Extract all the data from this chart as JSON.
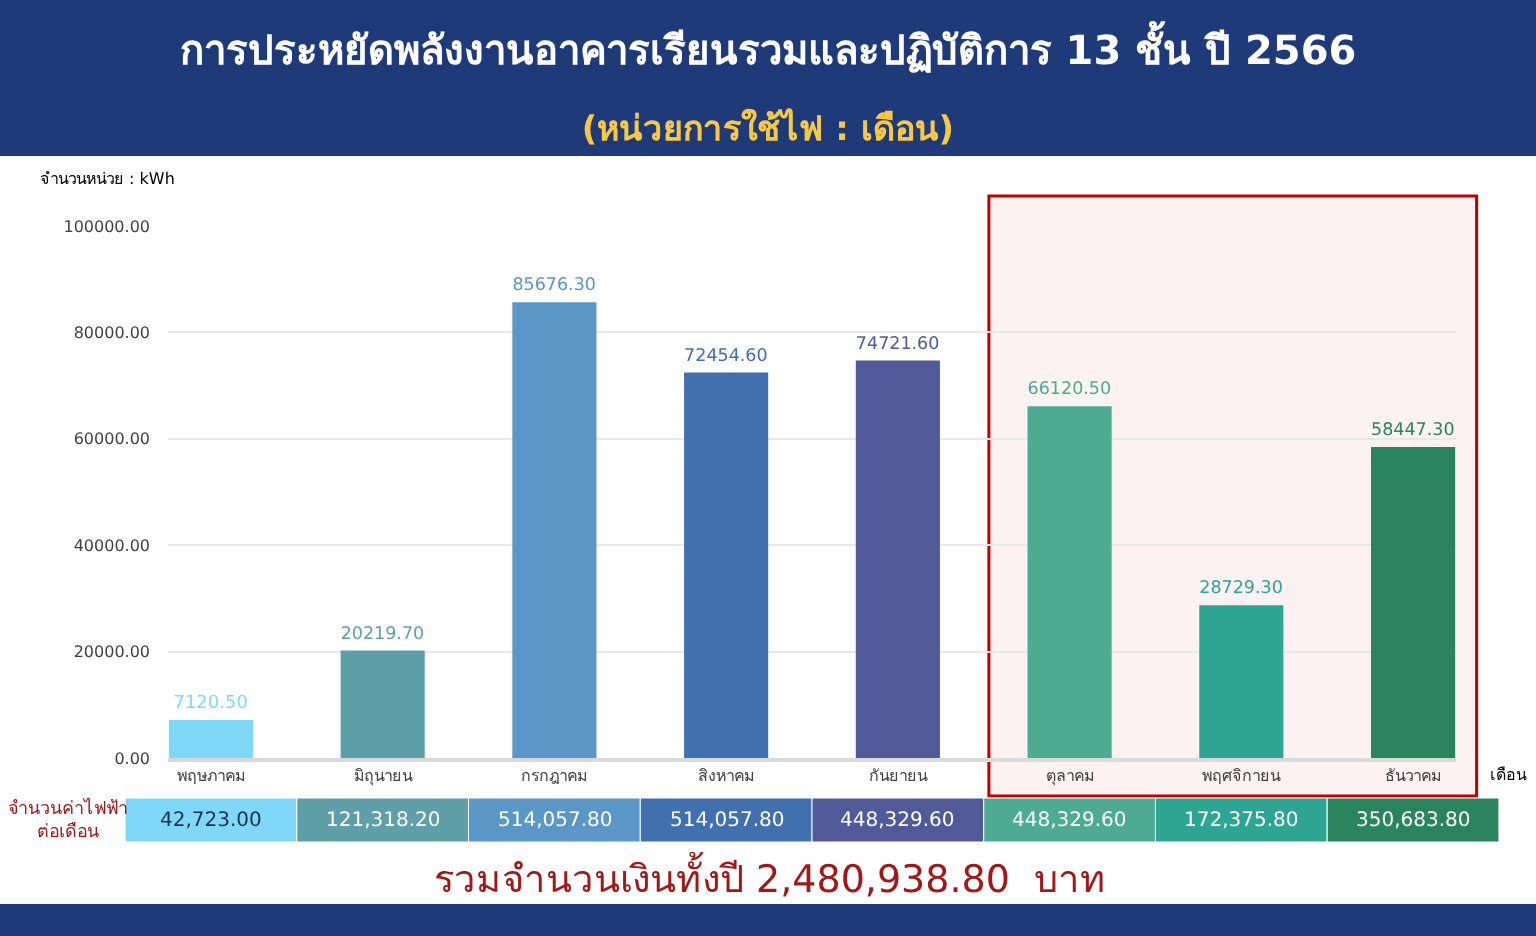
{
  "chart_data": {
    "type": "bar",
    "title": "การประหยัดพลังงานอาคารเรียนรวมและปฏิบัติการ 13 ชั้น ปี 2566",
    "subtitle": "(หน่วยการใช้ไฟ : เดือน)",
    "ylabel": "จำนวนหน่วย : kWh",
    "xlabel": "เดือน",
    "categories": [
      "พฤษภาคม",
      "มิถุนายน",
      "กรกฎาคม",
      "สิงหาคม",
      "กันยายน",
      "ตุลาคม",
      "พฤศจิกายน",
      "ธันวาคม"
    ],
    "values": [
      7120.5,
      20219.7,
      85676.3,
      72454.6,
      74721.6,
      66120.5,
      28729.3,
      58447.3
    ],
    "value_labels": [
      "7120.50",
      "20219.70",
      "85676.30",
      "72454.60",
      "74721.60",
      "66120.50",
      "28729.30",
      "58447.30"
    ],
    "colors": [
      "#80d8f8",
      "#5f9fa8",
      "#5a97c6",
      "#4170ae",
      "#505a98",
      "#4dab92",
      "#2ea593",
      "#2a845f"
    ],
    "ylim": [
      0,
      100000
    ],
    "yticks": [
      {
        "value": 0,
        "label": "0.00"
      },
      {
        "value": 20000,
        "label": "20000.00"
      },
      {
        "value": 40000,
        "label": "40000.00"
      },
      {
        "value": 60000,
        "label": "60000.00"
      },
      {
        "value": 80000,
        "label": "80000.00"
      },
      {
        "value": 100000,
        "label": "100000.00"
      }
    ],
    "grid": "y",
    "bands": [
      {
        "axis": "x",
        "from": "ตุลาคม",
        "to": "ธันวาคม",
        "color": "#c00000"
      }
    ],
    "annotations": [
      "จำนวนค่าไฟฟ้า\nต่อเดือน",
      "42,723.00",
      "121,318.20",
      "514,057.80",
      "514,057.80",
      "448,329.60",
      "448,329.60",
      "172,375.80",
      "350,683.80",
      "รวมจำนวนเงินทั้งปี 2,480,938.80  บาท"
    ]
  }
}
